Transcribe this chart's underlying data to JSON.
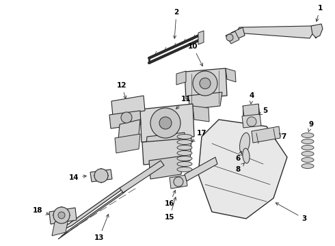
{
  "bg_color": "#ffffff",
  "line_color": "#2a2a2a",
  "label_color": "#000000",
  "figsize": [
    4.9,
    3.6
  ],
  "dpi": 100,
  "lw": 0.7,
  "label_fontsize": 7.5
}
